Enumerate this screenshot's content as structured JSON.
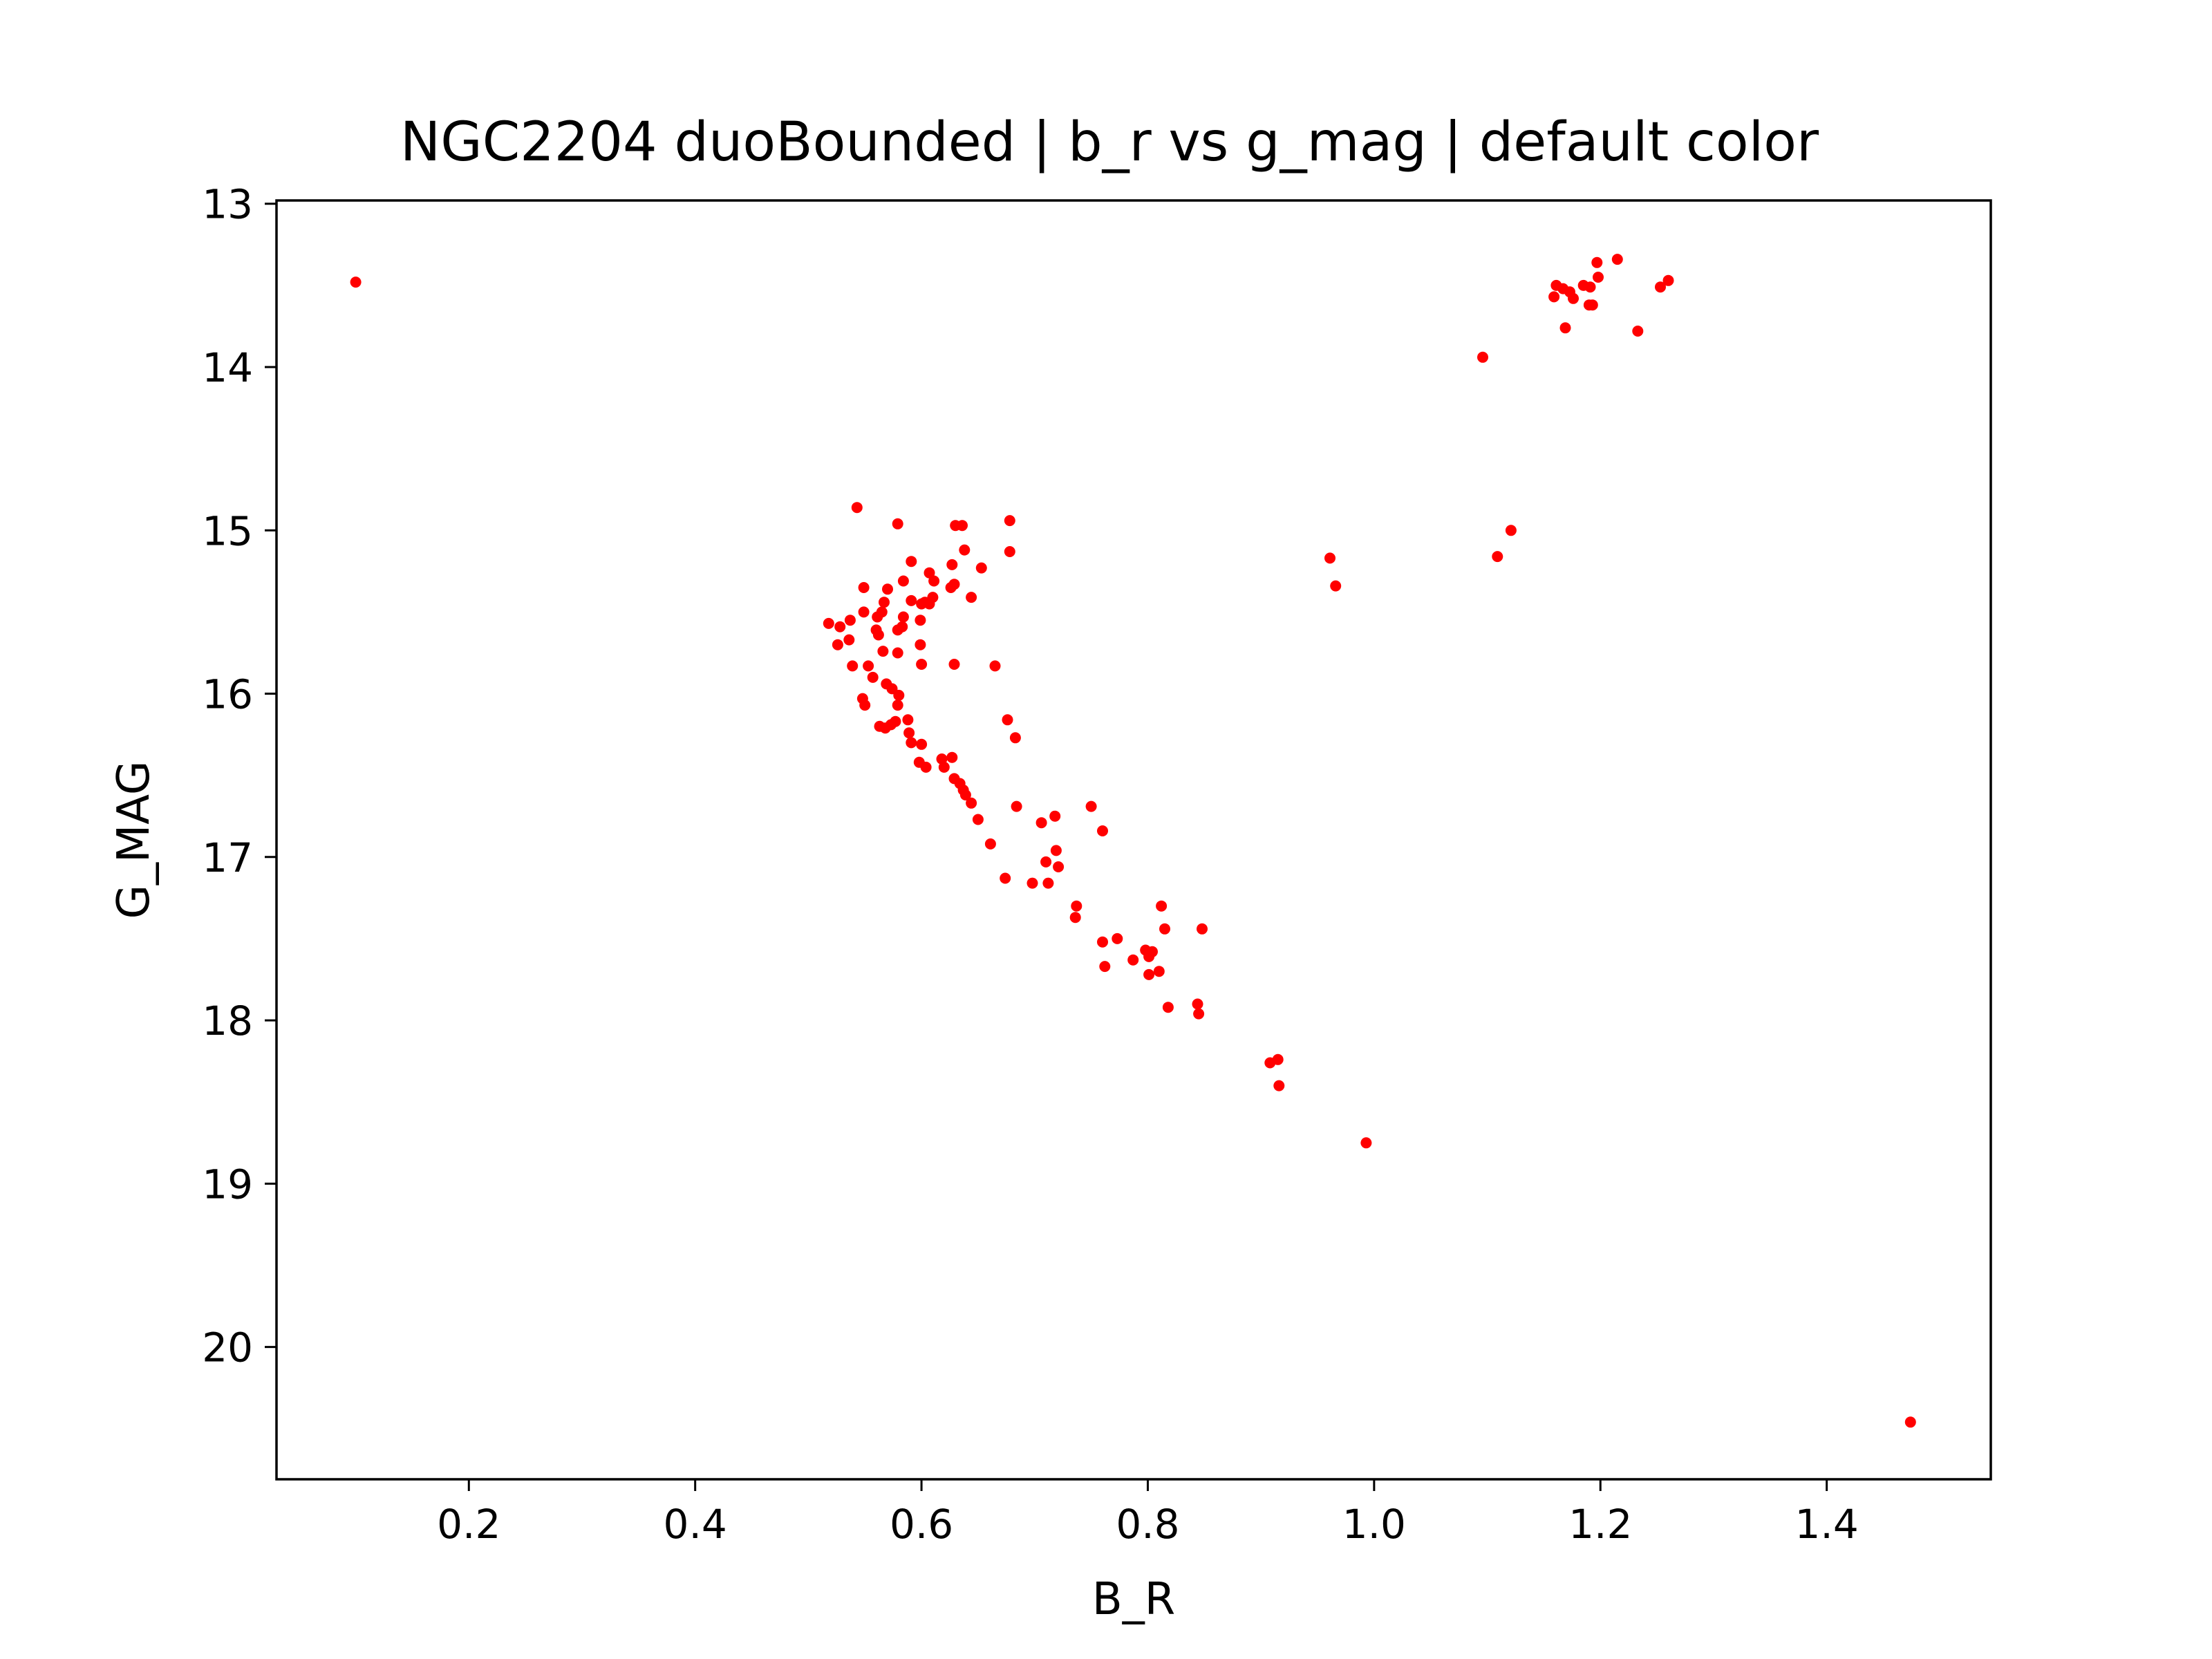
{
  "chart_data": {
    "type": "scatter",
    "title": "NGC2204 duoBounded | b_r vs g_mag | default color",
    "xlabel": "B_R",
    "ylabel": "G_MAG",
    "xlim": [
      0.03,
      1.545
    ],
    "ylim": [
      20.81,
      12.98
    ],
    "y_inverted": true,
    "grid": false,
    "legend": "none",
    "marker_color": "#ff0000",
    "xticks": [
      0.2,
      0.4,
      0.6,
      0.8,
      1.0,
      1.2,
      1.4
    ],
    "xtick_labels": [
      "0.2",
      "0.4",
      "0.6",
      "0.8",
      "1.0",
      "1.2",
      "1.4"
    ],
    "yticks": [
      13,
      14,
      15,
      16,
      17,
      18,
      19,
      20
    ],
    "ytick_labels": [
      "13",
      "14",
      "15",
      "16",
      "17",
      "18",
      "19",
      "20"
    ],
    "series": [
      {
        "points": [
          [
            0.1,
            13.48
          ],
          [
            1.215,
            13.34
          ],
          [
            1.197,
            13.36
          ],
          [
            1.198,
            13.45
          ],
          [
            1.185,
            13.5
          ],
          [
            1.191,
            13.51
          ],
          [
            1.161,
            13.5
          ],
          [
            1.167,
            13.52
          ],
          [
            1.173,
            13.54
          ],
          [
            1.159,
            13.57
          ],
          [
            1.176,
            13.58
          ],
          [
            1.193,
            13.62
          ],
          [
            1.19,
            13.62
          ],
          [
            1.169,
            13.76
          ],
          [
            1.233,
            13.78
          ],
          [
            1.253,
            13.51
          ],
          [
            1.26,
            13.47
          ],
          [
            1.096,
            13.94
          ],
          [
            0.543,
            14.86
          ],
          [
            0.579,
            14.96
          ],
          [
            0.63,
            14.97
          ],
          [
            0.636,
            14.97
          ],
          [
            0.678,
            14.94
          ],
          [
            0.678,
            15.13
          ],
          [
            0.638,
            15.12
          ],
          [
            0.591,
            15.19
          ],
          [
            0.627,
            15.21
          ],
          [
            0.653,
            15.23
          ],
          [
            0.607,
            15.26
          ],
          [
            0.584,
            15.31
          ],
          [
            0.611,
            15.31
          ],
          [
            0.629,
            15.33
          ],
          [
            0.626,
            15.35
          ],
          [
            0.549,
            15.35
          ],
          [
            0.57,
            15.36
          ],
          [
            0.644,
            15.41
          ],
          [
            0.61,
            15.41
          ],
          [
            0.591,
            15.43
          ],
          [
            0.567,
            15.44
          ],
          [
            0.603,
            15.44
          ],
          [
            0.607,
            15.45
          ],
          [
            0.6,
            15.45
          ],
          [
            0.549,
            15.5
          ],
          [
            0.565,
            15.5
          ],
          [
            0.561,
            15.53
          ],
          [
            0.584,
            15.53
          ],
          [
            0.537,
            15.55
          ],
          [
            0.599,
            15.55
          ],
          [
            0.518,
            15.57
          ],
          [
            0.528,
            15.59
          ],
          [
            0.56,
            15.61
          ],
          [
            0.579,
            15.61
          ],
          [
            0.583,
            15.59
          ],
          [
            0.562,
            15.64
          ],
          [
            0.536,
            15.67
          ],
          [
            0.526,
            15.7
          ],
          [
            0.599,
            15.7
          ],
          [
            0.566,
            15.74
          ],
          [
            0.579,
            15.75
          ],
          [
            0.539,
            15.83
          ],
          [
            0.553,
            15.83
          ],
          [
            0.6,
            15.82
          ],
          [
            0.629,
            15.82
          ],
          [
            0.665,
            15.83
          ],
          [
            0.557,
            15.9
          ],
          [
            0.569,
            15.94
          ],
          [
            0.574,
            15.97
          ],
          [
            0.58,
            16.01
          ],
          [
            0.548,
            16.03
          ],
          [
            0.55,
            16.07
          ],
          [
            0.579,
            16.07
          ],
          [
            0.588,
            16.16
          ],
          [
            0.577,
            16.17
          ],
          [
            0.573,
            16.19
          ],
          [
            0.563,
            16.2
          ],
          [
            0.568,
            16.21
          ],
          [
            0.676,
            16.16
          ],
          [
            0.683,
            16.27
          ],
          [
            0.589,
            16.24
          ],
          [
            0.591,
            16.3
          ],
          [
            0.6,
            16.31
          ],
          [
            0.598,
            16.42
          ],
          [
            0.604,
            16.45
          ],
          [
            0.618,
            16.4
          ],
          [
            0.627,
            16.39
          ],
          [
            0.62,
            16.45
          ],
          [
            0.629,
            16.52
          ],
          [
            0.634,
            16.55
          ],
          [
            0.637,
            16.59
          ],
          [
            0.639,
            16.62
          ],
          [
            0.644,
            16.67
          ],
          [
            0.65,
            16.77
          ],
          [
            0.684,
            16.69
          ],
          [
            0.718,
            16.75
          ],
          [
            0.706,
            16.79
          ],
          [
            0.75,
            16.69
          ],
          [
            0.76,
            16.84
          ],
          [
            0.661,
            16.92
          ],
          [
            0.719,
            16.96
          ],
          [
            0.71,
            17.03
          ],
          [
            0.721,
            17.06
          ],
          [
            0.674,
            17.13
          ],
          [
            0.698,
            17.16
          ],
          [
            0.712,
            17.16
          ],
          [
            0.737,
            17.3
          ],
          [
            0.736,
            17.37
          ],
          [
            0.812,
            17.3
          ],
          [
            0.815,
            17.44
          ],
          [
            0.848,
            17.44
          ],
          [
            0.773,
            17.5
          ],
          [
            0.76,
            17.52
          ],
          [
            0.798,
            17.57
          ],
          [
            0.804,
            17.58
          ],
          [
            0.801,
            17.61
          ],
          [
            0.787,
            17.63
          ],
          [
            0.762,
            17.67
          ],
          [
            0.81,
            17.7
          ],
          [
            0.801,
            17.72
          ],
          [
            0.818,
            17.92
          ],
          [
            0.844,
            17.9
          ],
          [
            0.845,
            17.96
          ],
          [
            0.915,
            18.24
          ],
          [
            0.908,
            18.26
          ],
          [
            0.916,
            18.4
          ],
          [
            0.961,
            15.17
          ],
          [
            0.966,
            15.34
          ],
          [
            1.121,
            15.0
          ],
          [
            1.109,
            15.16
          ],
          [
            0.993,
            18.75
          ],
          [
            1.474,
            20.46
          ]
        ]
      }
    ]
  }
}
